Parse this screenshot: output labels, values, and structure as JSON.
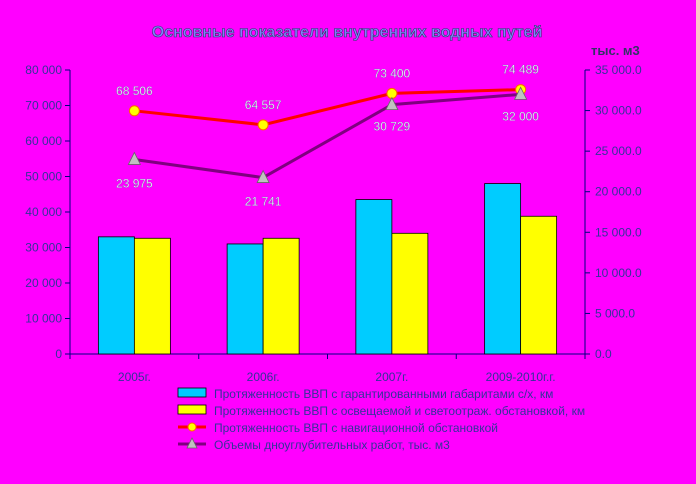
{
  "chart_data": {
    "type": "bar",
    "title": "Основные показатели внутренних водных путей",
    "right_unit": "тыс. м3",
    "categories": [
      "2005г.",
      "2006г.",
      "2007г.",
      "2009-2010г.г."
    ],
    "left_axis": {
      "min": 0,
      "max": 80000,
      "ticks": [
        "0",
        "10 000",
        "20 000",
        "30 000",
        "40 000",
        "50 000",
        "60 000",
        "70 000",
        "80 000"
      ]
    },
    "right_axis": {
      "min": 0,
      "max": 35000,
      "ticks": [
        "0.0",
        "5 000.0",
        "10 000.0",
        "15 000.0",
        "20 000.0",
        "25 000.0",
        "30 000.0",
        "35 000.0"
      ]
    },
    "series": [
      {
        "name": "Протяженность ВВП с гарантированными габаритами с/х, км",
        "kind": "bar",
        "axis": "left",
        "color": "#00ccff",
        "values": [
          33000,
          31000,
          43500,
          48000
        ]
      },
      {
        "name": "Протяженность ВВП с освещаемой и светоотраж. обстановкой, км",
        "kind": "bar",
        "axis": "left",
        "color": "#ffff00",
        "values": [
          32600,
          32600,
          34000,
          38800
        ]
      },
      {
        "name": "Протяженность ВВП с навигационной обстановкой",
        "kind": "line",
        "axis": "left",
        "color": "#ff0000",
        "marker_color": "#ffff00",
        "values": [
          68506,
          64557,
          73400,
          74489
        ],
        "labels": [
          "68 506",
          "64 557",
          "73 400",
          "74 489"
        ]
      },
      {
        "name": "Объемы дноуглубительных работ, тыс. м3",
        "kind": "line",
        "axis": "right",
        "color": "#800080",
        "marker_color": "#c0c0c0",
        "values": [
          23975,
          21741,
          30729,
          32000
        ],
        "labels": [
          "23 975",
          "21 741",
          "30 729",
          "32 000"
        ]
      }
    ],
    "grid": false,
    "legend_position": "bottom"
  }
}
